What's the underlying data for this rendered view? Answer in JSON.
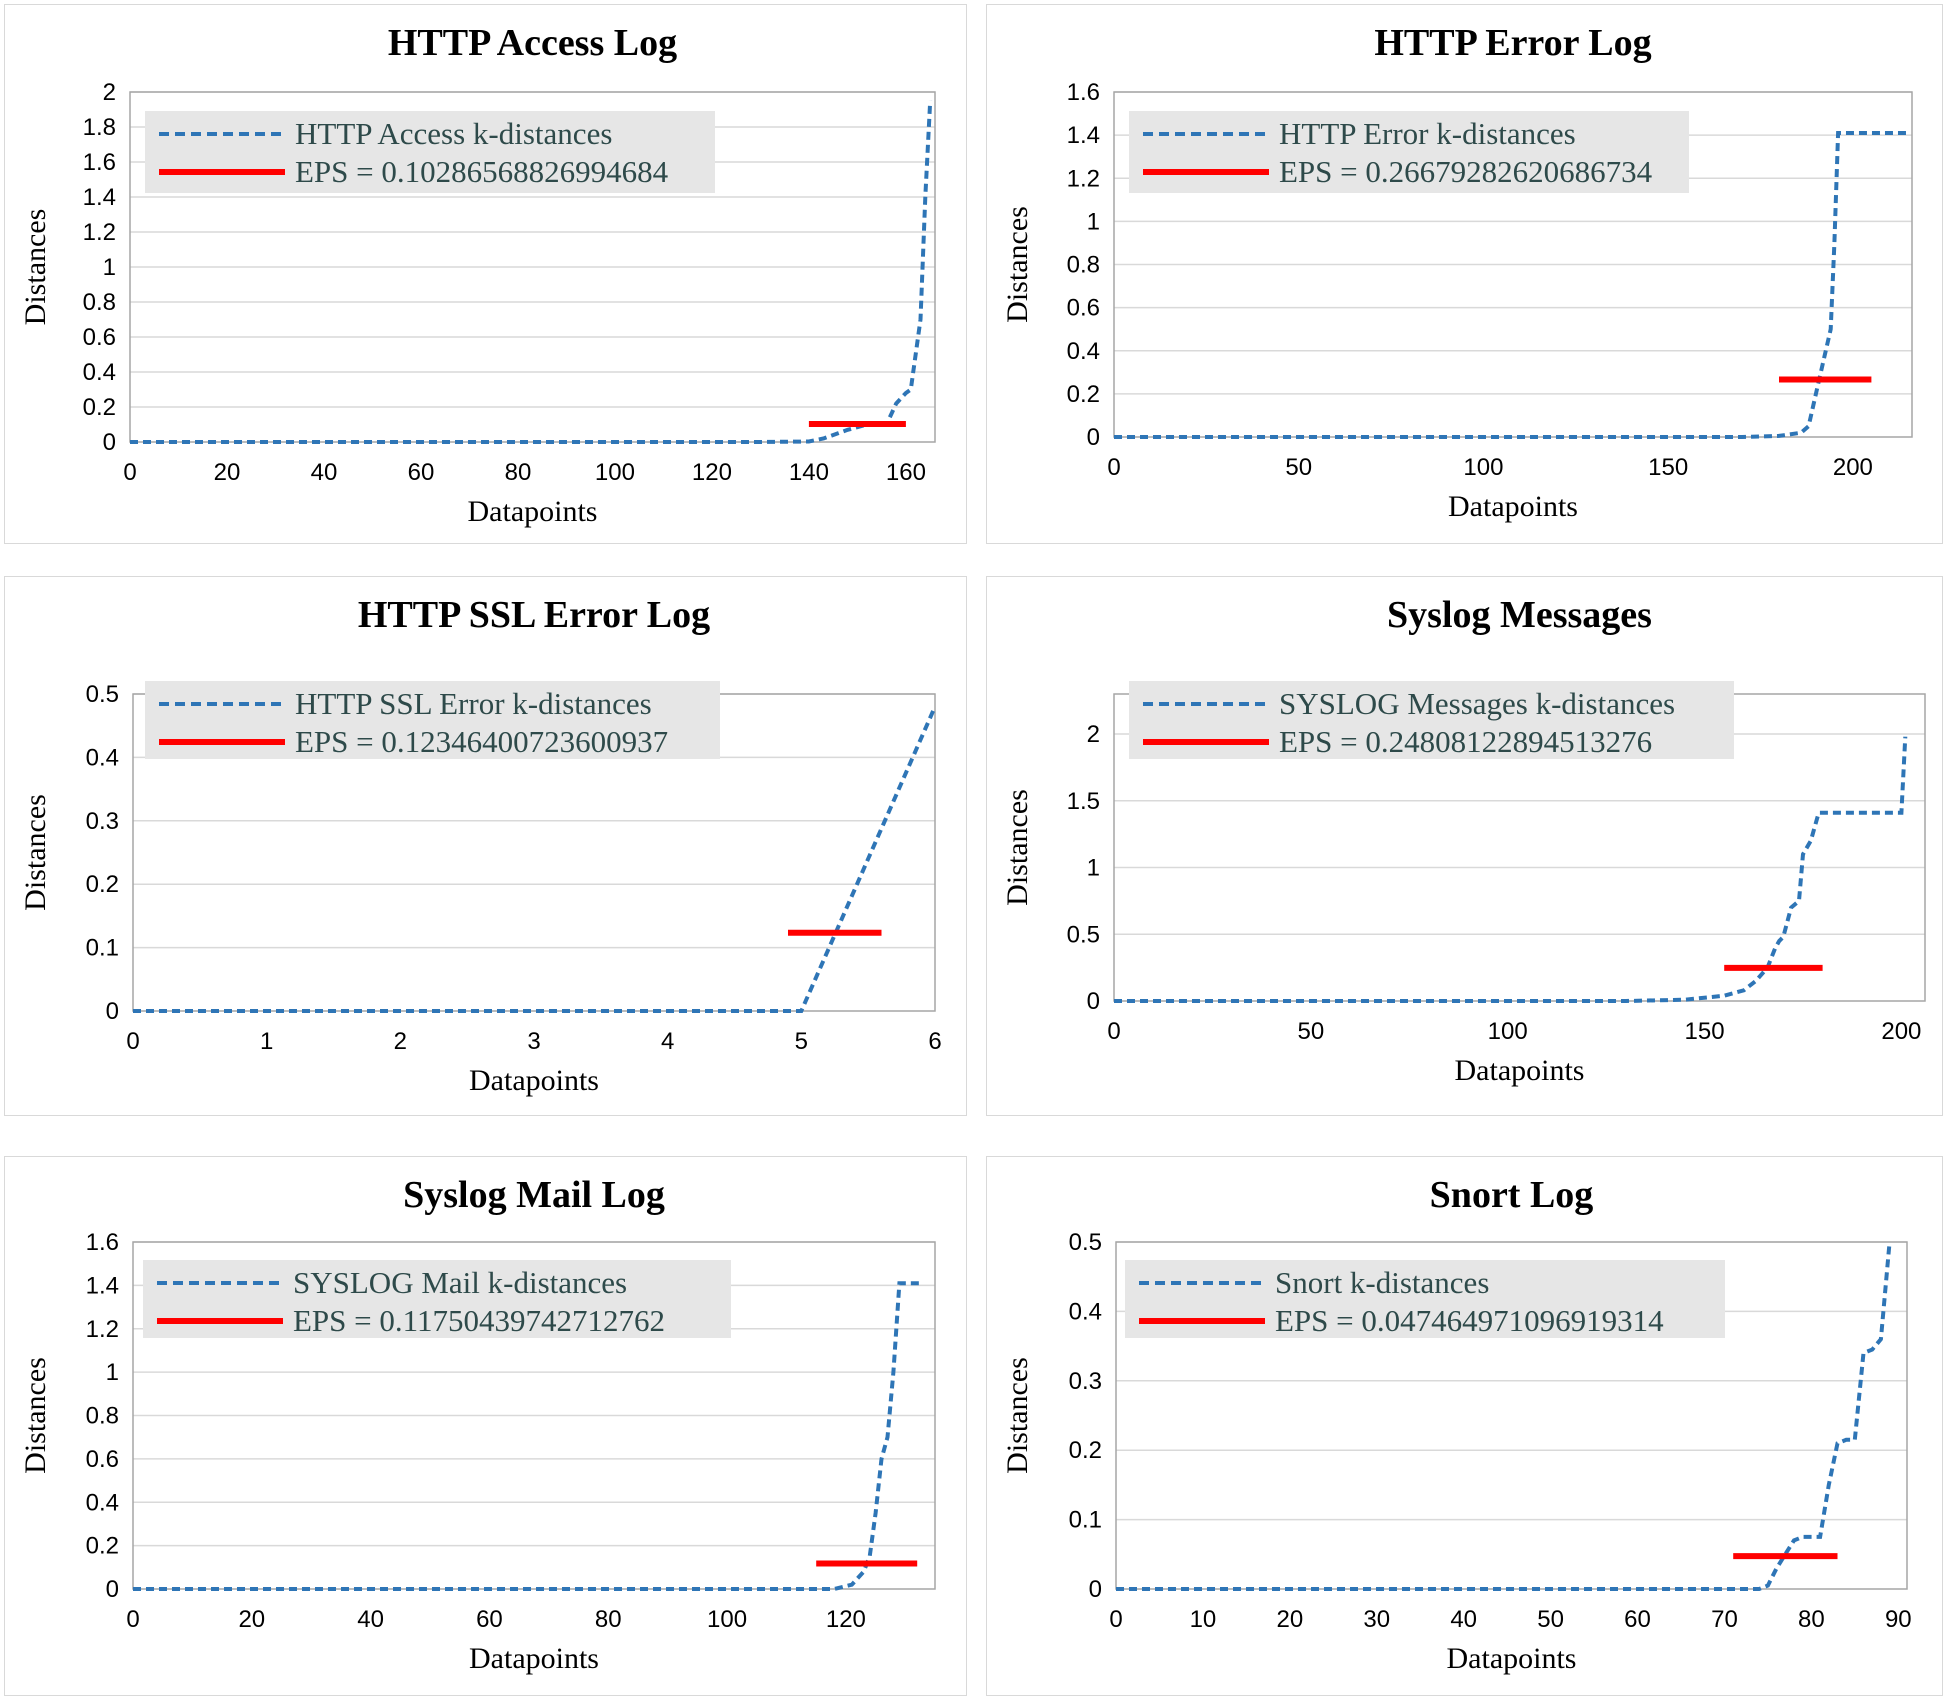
{
  "colors": {
    "kdist": "#2e75b6",
    "eps": "#ff0000",
    "grid": "#d9d9d9",
    "legend_bg": "#e6e6e6",
    "legend_text": "#2e4a4a"
  },
  "chart_data": [
    {
      "type": "line",
      "title": "HTTP Access Log",
      "xlabel": "Datapoints",
      "ylabel": "Distances",
      "xlim": [
        0,
        166
      ],
      "ylim": [
        0,
        2
      ],
      "xticks": [
        0,
        20,
        40,
        60,
        80,
        100,
        120,
        140,
        160
      ],
      "yticks": [
        0,
        0.2,
        0.4,
        0.6,
        0.8,
        1,
        1.2,
        1.4,
        1.6,
        1.8,
        2
      ],
      "ytick_labels": [
        "0",
        "0.2",
        "0.4",
        "0.6",
        "0.8",
        "1",
        "1.2",
        "1.4",
        "1.6",
        "1.8",
        "2"
      ],
      "legend_position": "top-left",
      "series": [
        {
          "name": "HTTP Access k-distances",
          "style": "dashed",
          "x": [
            0,
            130,
            140,
            143,
            148,
            152,
            156,
            158,
            160,
            161,
            163,
            164,
            165
          ],
          "y": [
            0,
            0,
            0.003,
            0.02,
            0.07,
            0.1,
            0.1,
            0.22,
            0.28,
            0.3,
            0.7,
            1.4,
            1.95
          ]
        },
        {
          "name": "EPS = 0.10286568826994684",
          "style": "solid",
          "x": [
            140,
            160
          ],
          "y": [
            0.10286568826994684,
            0.10286568826994684
          ]
        }
      ]
    },
    {
      "type": "line",
      "title": "HTTP Error Log",
      "xlabel": "Datapoints",
      "ylabel": "Distances",
      "xlim": [
        0,
        216
      ],
      "ylim": [
        0,
        1.6
      ],
      "xticks": [
        0,
        50,
        100,
        150,
        200
      ],
      "yticks": [
        0,
        0.2,
        0.4,
        0.6,
        0.8,
        1,
        1.2,
        1.4,
        1.6
      ],
      "ytick_labels": [
        "0",
        "0.2",
        "0.4",
        "0.6",
        "0.8",
        "1",
        "1.2",
        "1.4",
        "1.6"
      ],
      "legend_position": "top-left",
      "series": [
        {
          "name": "HTTP Error k-distances",
          "style": "dashed",
          "x": [
            0,
            170,
            180,
            186,
            188,
            190,
            192,
            194,
            195,
            196,
            215
          ],
          "y": [
            0,
            0,
            0.005,
            0.02,
            0.05,
            0.2,
            0.35,
            0.5,
            0.9,
            1.41,
            1.41
          ]
        },
        {
          "name": "EPS = 0.26679282620686734",
          "style": "solid",
          "x": [
            180,
            205
          ],
          "y": [
            0.26679282620686734,
            0.26679282620686734
          ]
        }
      ]
    },
    {
      "type": "line",
      "title": "HTTP SSL Error Log",
      "xlabel": "Datapoints",
      "ylabel": "Distances",
      "xlim": [
        0,
        6
      ],
      "ylim": [
        0,
        0.5
      ],
      "xticks": [
        0,
        1,
        2,
        3,
        4,
        5,
        6
      ],
      "yticks": [
        0,
        0.1,
        0.2,
        0.3,
        0.4,
        0.5
      ],
      "ytick_labels": [
        "0",
        "0.1",
        "0.2",
        "0.3",
        "0.4",
        "0.5"
      ],
      "legend_position": "top-left",
      "series": [
        {
          "name": "HTTP SSL Error k-distances",
          "style": "dashed",
          "x": [
            0,
            1,
            2,
            3,
            4,
            5,
            6
          ],
          "y": [
            0,
            0,
            0,
            0,
            0,
            0,
            0.48
          ]
        },
        {
          "name": "EPS = 0.12346400723600937",
          "style": "solid",
          "x": [
            4.9,
            5.6
          ],
          "y": [
            0.12346400723600937,
            0.12346400723600937
          ]
        }
      ]
    },
    {
      "type": "line",
      "title": "Syslog Messages",
      "xlabel": "Datapoints",
      "ylabel": "Distances",
      "xlim": [
        0,
        206
      ],
      "ylim": [
        0,
        2.3
      ],
      "xticks": [
        0,
        50,
        100,
        150,
        200
      ],
      "yticks": [
        0,
        0.5,
        1,
        1.5,
        2
      ],
      "ytick_labels": [
        "0",
        "0.5",
        "1",
        "1.5",
        "2"
      ],
      "legend_position": "top-left",
      "series": [
        {
          "name": "SYSLOG Messages k-distances",
          "style": "dashed",
          "x": [
            0,
            130,
            145,
            155,
            160,
            163,
            166,
            168,
            169,
            170,
            172,
            174,
            175,
            177,
            179,
            200,
            201
          ],
          "y": [
            0,
            0,
            0.01,
            0.04,
            0.08,
            0.15,
            0.25,
            0.4,
            0.45,
            0.48,
            0.7,
            0.75,
            1.1,
            1.2,
            1.41,
            1.41,
            1.98
          ]
        },
        {
          "name": "EPS = 0.24808122894513276",
          "style": "solid",
          "x": [
            155,
            180
          ],
          "y": [
            0.24808122894513276,
            0.24808122894513276
          ]
        }
      ]
    },
    {
      "type": "line",
      "title": "Syslog Mail Log",
      "xlabel": "Datapoints",
      "ylabel": "Distances",
      "xlim": [
        0,
        135
      ],
      "ylim": [
        0,
        1.6
      ],
      "xticks": [
        0,
        20,
        40,
        60,
        80,
        100,
        120
      ],
      "yticks": [
        0,
        0.2,
        0.4,
        0.6,
        0.8,
        1,
        1.2,
        1.4,
        1.6
      ],
      "ytick_labels": [
        "0",
        "0.2",
        "0.4",
        "0.6",
        "0.8",
        "1",
        "1.2",
        "1.4",
        "1.6"
      ],
      "legend_position": "top-left",
      "series": [
        {
          "name": "SYSLOG Mail k-distances",
          "style": "dashed",
          "x": [
            0,
            118,
            121,
            123,
            124,
            125,
            126,
            127,
            128,
            129,
            133
          ],
          "y": [
            0,
            0,
            0.02,
            0.08,
            0.15,
            0.35,
            0.6,
            0.7,
            1.0,
            1.41,
            1.41
          ]
        },
        {
          "name": "EPS = 0.11750439742712762",
          "style": "solid",
          "x": [
            115,
            132
          ],
          "y": [
            0.11750439742712762,
            0.11750439742712762
          ]
        }
      ]
    },
    {
      "type": "line",
      "title": "Snort Log",
      "xlabel": "Datapoints",
      "ylabel": "Distances",
      "xlim": [
        0,
        91
      ],
      "ylim": [
        0,
        0.5
      ],
      "xticks": [
        0,
        10,
        20,
        30,
        40,
        50,
        60,
        70,
        80,
        90
      ],
      "yticks": [
        0,
        0.1,
        0.2,
        0.3,
        0.4,
        0.5
      ],
      "ytick_labels": [
        "0",
        "0.1",
        "0.2",
        "0.3",
        "0.4",
        "0.5"
      ],
      "legend_position": "top-left",
      "series": [
        {
          "name": "Snort k-distances",
          "style": "dashed",
          "x": [
            0,
            74,
            75,
            76,
            77,
            78,
            79,
            80,
            81,
            82,
            83,
            84,
            85,
            86,
            87,
            88,
            89
          ],
          "y": [
            0,
            0,
            0.005,
            0.03,
            0.05,
            0.07,
            0.075,
            0.075,
            0.075,
            0.15,
            0.21,
            0.215,
            0.215,
            0.34,
            0.345,
            0.36,
            0.5
          ]
        },
        {
          "name": "EPS = 0.047464971096919314",
          "style": "solid",
          "x": [
            71,
            83
          ],
          "y": [
            0.047464971096919314,
            0.047464971096919314
          ]
        }
      ]
    }
  ]
}
